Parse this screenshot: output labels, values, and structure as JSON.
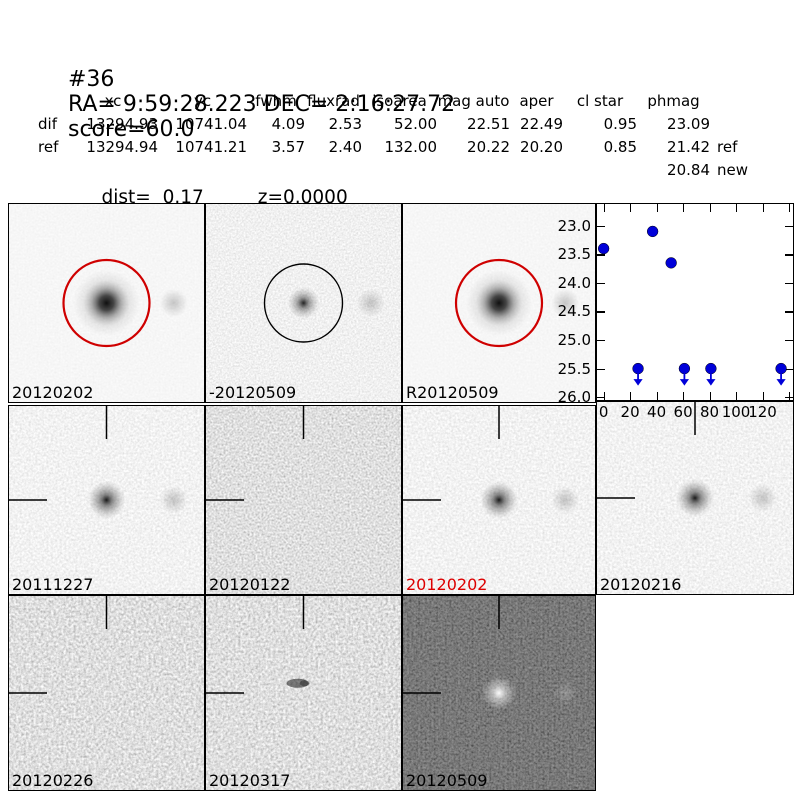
{
  "header": {
    "id": "#36",
    "coords": "RA= 9:59:28.223 DEC= 2:16:27.72",
    "score": "score=60.0"
  },
  "photometry": {
    "columns": [
      "xc",
      "yc",
      "fwhm",
      "fluxrad",
      "isoarea",
      "mag auto",
      "aper",
      "cl star",
      "phmag"
    ],
    "rows": [
      {
        "label": "dif",
        "values": [
          "13294.93",
          "10741.04",
          "4.09",
          "2.53",
          "52.00",
          "22.51",
          "22.49",
          "0.95",
          "23.09"
        ],
        "suffix": ""
      },
      {
        "label": "ref",
        "values": [
          "13294.94",
          "10741.21",
          "3.57",
          "2.40",
          "132.00",
          "20.22",
          "20.20",
          "0.85",
          "21.42"
        ],
        "suffix": "ref"
      },
      {
        "label": "",
        "values": [
          "",
          "",
          "",
          "",
          "",
          "",
          "",
          "",
          "20.84"
        ],
        "suffix": "new"
      }
    ],
    "dist": "dist=  0.17",
    "z": "z=0.0000"
  },
  "cutouts": [
    {
      "label": "20120202",
      "row": 1,
      "col": 1,
      "style": "smooth-light",
      "marker": "circle-red",
      "blob": "strong",
      "companion": "dark",
      "label_color": "#000000"
    },
    {
      "label": "-20120509",
      "row": 1,
      "col": 2,
      "style": "fine-noise",
      "marker": "circle-black",
      "blob": "small",
      "companion": "dark",
      "label_color": "#000000"
    },
    {
      "label": "R20120509",
      "row": 1,
      "col": 3,
      "style": "smooth-light",
      "marker": "circle-red",
      "blob": "strong",
      "companion": "dark",
      "label_color": "#000000"
    },
    {
      "label": "20111227",
      "row": 2,
      "col": 1,
      "style": "light-noise",
      "marker": "crosshair",
      "blob": "medium",
      "companion": "dark",
      "label_color": "#000000"
    },
    {
      "label": "20120122",
      "row": 2,
      "col": 2,
      "style": "grey-noise",
      "marker": "crosshair",
      "blob": "none",
      "companion": "none",
      "label_color": "#000000"
    },
    {
      "label": "20120202",
      "row": 2,
      "col": 3,
      "style": "light-noise",
      "marker": "crosshair",
      "blob": "medium",
      "companion": "dark",
      "label_color": "#dd0000"
    },
    {
      "label": "20120216",
      "row": 2,
      "col": 4,
      "style": "light-noise",
      "marker": "crosshair",
      "blob": "medium",
      "companion": "dark",
      "label_color": "#000000"
    },
    {
      "label": "20120226",
      "row": 3,
      "col": 1,
      "style": "grey-noise2",
      "marker": "crosshair",
      "blob": "none",
      "companion": "none",
      "label_color": "#000000"
    },
    {
      "label": "20120317",
      "row": 3,
      "col": 2,
      "style": "grey-noise2",
      "marker": "crosshair",
      "blob": "smudge",
      "companion": "none",
      "label_color": "#000000"
    },
    {
      "label": "20120509",
      "row": 3,
      "col": 3,
      "style": "dark-noise",
      "marker": "crosshair",
      "blob": "white",
      "companion": "light",
      "label_color": "#000000"
    }
  ],
  "chart_data": {
    "type": "scatter",
    "title": "",
    "xlabel": "",
    "ylabel": "",
    "x_axis": {
      "lim": [
        -5,
        143
      ],
      "ticks": [
        0,
        20,
        40,
        60,
        80,
        100,
        120,
        140
      ],
      "tick_labels": [
        "0",
        "20",
        "40",
        "60",
        "80",
        "100",
        "120",
        ""
      ]
    },
    "y_axis": {
      "lim_top": 22.62,
      "lim_bottom": 26.05,
      "inverted": true,
      "ticks": [
        23.0,
        23.5,
        24.0,
        24.5,
        25.0,
        25.5,
        26.0
      ],
      "tick_labels": [
        "23.0",
        "23.5",
        "24.0",
        "24.5",
        "25.0",
        "25.5",
        "26.0"
      ]
    },
    "grid": false,
    "legend": null,
    "series": [
      {
        "name": "detections",
        "marker": "circle",
        "color": "#0000d9",
        "points": [
          [
            0,
            23.4
          ],
          [
            37,
            23.1
          ],
          [
            51,
            23.65
          ]
        ]
      },
      {
        "name": "upper-limits",
        "marker": "circle-down-arrow",
        "color": "#0000d9",
        "points": [
          [
            26,
            25.5
          ],
          [
            61,
            25.5
          ],
          [
            81,
            25.5
          ],
          [
            134,
            25.5
          ]
        ]
      }
    ]
  },
  "colors": {
    "aperture_red": "#cf0000",
    "aperture_black": "#000000",
    "marker_blue": "#0000d9",
    "highlight_label_red": "#dd0000"
  }
}
